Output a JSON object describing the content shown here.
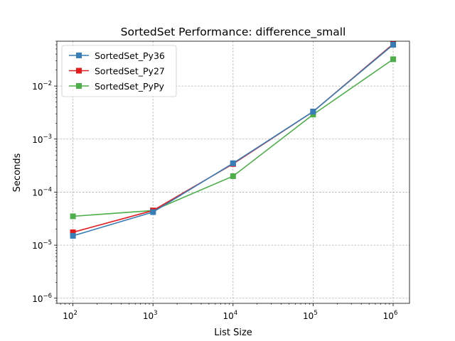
{
  "chart_data": {
    "type": "line",
    "title": "SortedSet Performance: difference_small",
    "xlabel": "List Size",
    "ylabel": "Seconds",
    "xscale": "log",
    "yscale": "log",
    "xlim": [
      63,
      1600000
    ],
    "ylim": [
      8e-07,
      0.07
    ],
    "xticks": [
      {
        "value": 100,
        "base": "10",
        "exp": "2"
      },
      {
        "value": 1000,
        "base": "10",
        "exp": "3"
      },
      {
        "value": 10000,
        "base": "10",
        "exp": "4"
      },
      {
        "value": 100000,
        "base": "10",
        "exp": "5"
      },
      {
        "value": 1000000,
        "base": "10",
        "exp": "6"
      }
    ],
    "yticks": [
      {
        "value": 1e-06,
        "base": "10",
        "exp": "−6"
      },
      {
        "value": 1e-05,
        "base": "10",
        "exp": "−5"
      },
      {
        "value": 0.0001,
        "base": "10",
        "exp": "−4"
      },
      {
        "value": 0.001,
        "base": "10",
        "exp": "−3"
      },
      {
        "value": 0.01,
        "base": "10",
        "exp": "−2"
      }
    ],
    "grid": true,
    "legend_position": "upper-left",
    "x": [
      100,
      1000,
      10000,
      100000,
      1000000
    ],
    "series": [
      {
        "name": "SortedSet_Py36",
        "color": "#377eb8",
        "values": [
          1.5e-05,
          4.2e-05,
          0.00035,
          0.0033,
          0.06
        ]
      },
      {
        "name": "SortedSet_Py27",
        "color": "#e41a1c",
        "values": [
          1.75e-05,
          4.5e-05,
          0.00034,
          0.0033,
          0.062
        ]
      },
      {
        "name": "SortedSet_PyPy",
        "color": "#4daf4a",
        "values": [
          3.5e-05,
          4.5e-05,
          0.0002,
          0.0029,
          0.032
        ]
      }
    ]
  }
}
